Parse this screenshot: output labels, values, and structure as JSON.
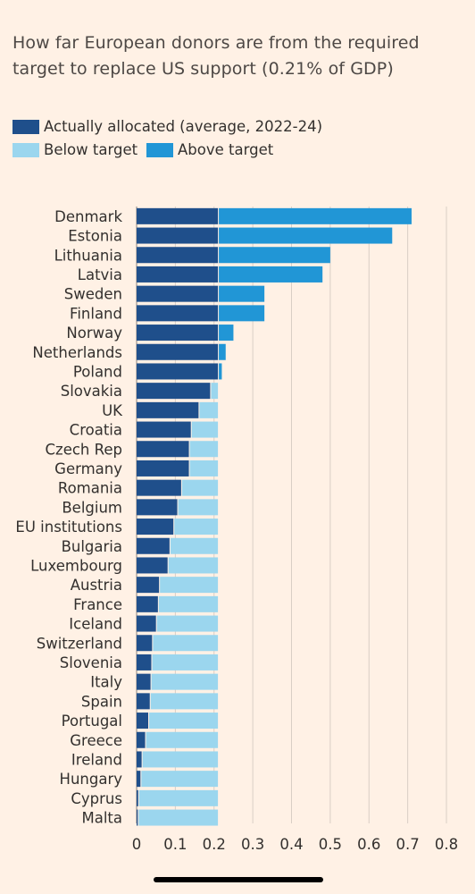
{
  "title": "How far European donors are from the required target to replace US support (0.21% of GDP)",
  "legend": {
    "allocated": "Actually allocated (average, 2022-24)",
    "below": "Below target",
    "above": "Above target"
  },
  "colors": {
    "allocated": "#1f4f8b",
    "below": "#9bd6ee",
    "above": "#2196d6",
    "grid": "#d9cec5",
    "background": "#fff1e5"
  },
  "chart_data": {
    "type": "bar",
    "orientation": "horizontal",
    "stacked": true,
    "target": 0.21,
    "categories": [
      "Denmark",
      "Estonia",
      "Lithuania",
      "Latvia",
      "Sweden",
      "Finland",
      "Norway",
      "Netherlands",
      "Poland",
      "Slovakia",
      "UK",
      "Croatia",
      "Czech Rep",
      "Germany",
      "Romania",
      "Belgium",
      "EU institutions",
      "Bulgaria",
      "Luxembourg",
      "Austria",
      "France",
      "Iceland",
      "Switzerland",
      "Slovenia",
      "Italy",
      "Spain",
      "Portugal",
      "Greece",
      "Ireland",
      "Hungary",
      "Cyprus",
      "Malta"
    ],
    "allocated": [
      0.71,
      0.66,
      0.5,
      0.48,
      0.33,
      0.33,
      0.25,
      0.23,
      0.22,
      0.19,
      0.16,
      0.14,
      0.135,
      0.135,
      0.115,
      0.105,
      0.095,
      0.085,
      0.08,
      0.058,
      0.055,
      0.05,
      0.04,
      0.038,
      0.036,
      0.034,
      0.03,
      0.022,
      0.013,
      0.01,
      0.004,
      0.003
    ],
    "series": [
      {
        "name": "Actually allocated (average, 2022-24)"
      },
      {
        "name": "Below target"
      },
      {
        "name": "Above target"
      }
    ],
    "xlim": [
      0,
      0.8
    ],
    "xticks": [
      0,
      0.1,
      0.2,
      0.3,
      0.4,
      0.5,
      0.6,
      0.7,
      0.8
    ],
    "xtick_labels": [
      "0",
      "0.1",
      "0.2",
      "0.3",
      "0.4",
      "0.5",
      "0.6",
      "0.7",
      "0.8"
    ],
    "grid": "vertical",
    "legend_position": "top-left"
  }
}
